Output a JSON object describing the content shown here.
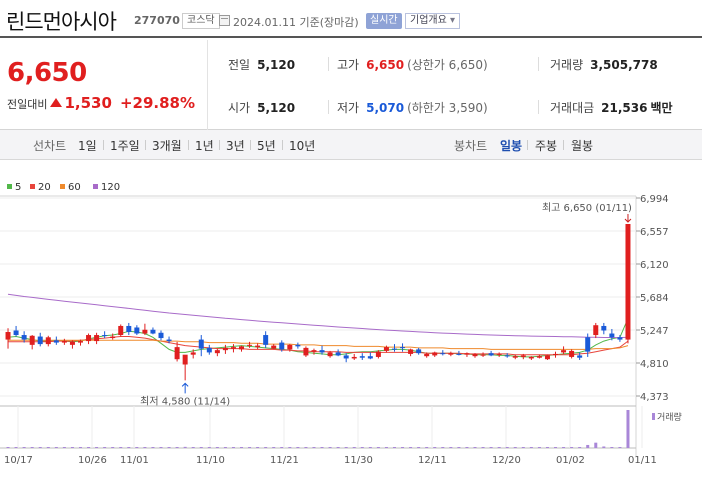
{
  "header": {
    "stock_name": "린드먼아시아",
    "stock_code": "277070",
    "market": "코스닥",
    "date": "2024.01.11 기준(장마감)",
    "realtime_label": "실시간",
    "company_label": "기업개요",
    "company_arrow": "▾"
  },
  "quote": {
    "price": "6,650",
    "change_label": "전일대비",
    "change": "1,530",
    "change_pct": "+29.88%",
    "prev_label": "전일",
    "prev": "5,120",
    "open_label": "시가",
    "open": "5,120",
    "high_label": "고가",
    "high": "6,650",
    "upper_limit": "(상한가 6,650)",
    "low_label": "저가",
    "low": "5,070",
    "lower_limit": "(하한가 3,590)",
    "volume_label": "거래량",
    "volume": "3,505,778",
    "amount_label": "거래대금",
    "amount": "21,536",
    "amount_unit": "백만",
    "colors": {
      "up": "#e01f1f",
      "down": "#1a5ad8"
    }
  },
  "tabs": {
    "line_label": "선차트",
    "line_periods": [
      "1일",
      "1주일",
      "3개월",
      "1년",
      "3년",
      "5년",
      "10년"
    ],
    "candle_label": "봉차트",
    "candle_periods": [
      "일봉",
      "주봉",
      "월봉"
    ],
    "active_candle": "일봉"
  },
  "legend": [
    {
      "label": "5",
      "color": "#52b84a"
    },
    {
      "label": "20",
      "color": "#e8453c"
    },
    {
      "label": "60",
      "color": "#ef8a2c"
    },
    {
      "label": "120",
      "color": "#a86bc9"
    }
  ],
  "chart_data": {
    "type": "candlestick",
    "y_ticks": [
      "6,994",
      "6,557",
      "6,120",
      "5,684",
      "5,247",
      "4,810",
      "4,373"
    ],
    "ylim": [
      4373,
      6994
    ],
    "x_labels": [
      "10/17",
      "10/26",
      "11/01",
      "11/10",
      "11/21",
      "11/30",
      "12/11",
      "12/20",
      "01/02",
      "01/11"
    ],
    "annotation_high": "최고 6,650 (01/11)",
    "annotation_low": "최저 4,580 (11/14)",
    "volume_label": "거래량",
    "candles": [
      [
        5120,
        5270,
        5000,
        5220
      ],
      [
        5240,
        5300,
        5160,
        5180
      ],
      [
        5180,
        5230,
        5080,
        5120
      ],
      [
        5050,
        5180,
        4990,
        5170
      ],
      [
        5160,
        5210,
        5030,
        5060
      ],
      [
        5060,
        5170,
        5030,
        5150
      ],
      [
        5110,
        5160,
        5050,
        5080
      ],
      [
        5080,
        5130,
        5050,
        5100
      ],
      [
        5050,
        5110,
        5000,
        5090
      ],
      [
        5080,
        5120,
        5040,
        5100
      ],
      [
        5100,
        5200,
        5060,
        5180
      ],
      [
        5100,
        5210,
        5060,
        5180
      ],
      [
        5180,
        5230,
        5140,
        5170
      ],
      [
        5140,
        5200,
        5120,
        5160
      ],
      [
        5180,
        5320,
        5160,
        5300
      ],
      [
        5300,
        5340,
        5180,
        5220
      ],
      [
        5280,
        5310,
        5180,
        5200
      ],
      [
        5200,
        5330,
        5180,
        5250
      ],
      [
        5250,
        5280,
        5190,
        5200
      ],
      [
        5210,
        5240,
        5110,
        5140
      ],
      [
        5120,
        5160,
        5070,
        5100
      ],
      [
        4860,
        5090,
        4830,
        5020
      ],
      [
        4790,
        4910,
        4580,
        4920
      ],
      [
        4920,
        4990,
        4870,
        4950
      ],
      [
        5120,
        5180,
        4900,
        5000
      ],
      [
        5010,
        5050,
        4920,
        4950
      ],
      [
        4940,
        5000,
        4900,
        4980
      ],
      [
        4980,
        5050,
        4930,
        5010
      ],
      [
        5000,
        5060,
        4950,
        5020
      ],
      [
        4990,
        5040,
        4960,
        5030
      ],
      [
        5040,
        5090,
        5010,
        5050
      ],
      [
        5020,
        5070,
        4990,
        5040
      ],
      [
        5180,
        5230,
        5010,
        5050
      ],
      [
        5000,
        5060,
        4990,
        5040
      ],
      [
        5080,
        5110,
        4960,
        4990
      ],
      [
        4990,
        5060,
        4960,
        5050
      ],
      [
        5050,
        5080,
        5000,
        5030
      ],
      [
        4910,
        5030,
        4890,
        5010
      ],
      [
        4960,
        5000,
        4920,
        4980
      ],
      [
        4980,
        5040,
        4920,
        4950
      ],
      [
        4900,
        4970,
        4880,
        4950
      ],
      [
        4950,
        4990,
        4900,
        4910
      ],
      [
        4910,
        4940,
        4820,
        4870
      ],
      [
        4870,
        4930,
        4850,
        4890
      ],
      [
        4900,
        4940,
        4850,
        4880
      ],
      [
        4900,
        4950,
        4860,
        4870
      ],
      [
        4890,
        4980,
        4870,
        4960
      ],
      [
        4970,
        5040,
        4950,
        5020
      ],
      [
        5000,
        5060,
        4960,
        4990
      ],
      [
        5020,
        5070,
        4960,
        5010
      ],
      [
        4930,
        5000,
        4900,
        4990
      ],
      [
        4990,
        5010,
        4920,
        4940
      ],
      [
        4900,
        4950,
        4880,
        4930
      ],
      [
        4910,
        4960,
        4890,
        4950
      ],
      [
        4940,
        4980,
        4910,
        4930
      ],
      [
        4920,
        4960,
        4900,
        4940
      ],
      [
        4930,
        4970,
        4910,
        4920
      ],
      [
        4920,
        4950,
        4890,
        4940
      ],
      [
        4900,
        4940,
        4880,
        4930
      ],
      [
        4910,
        4950,
        4890,
        4920
      ],
      [
        4940,
        4970,
        4900,
        4910
      ],
      [
        4920,
        4950,
        4890,
        4930
      ],
      [
        4910,
        4940,
        4880,
        4900
      ],
      [
        4880,
        4920,
        4860,
        4900
      ],
      [
        4890,
        4930,
        4860,
        4910
      ],
      [
        4870,
        4900,
        4850,
        4890
      ],
      [
        4880,
        4920,
        4870,
        4900
      ],
      [
        4860,
        4920,
        4850,
        4910
      ],
      [
        4920,
        4960,
        4880,
        4930
      ],
      [
        4950,
        5030,
        4930,
        4980
      ],
      [
        4890,
        4990,
        4870,
        4970
      ],
      [
        4910,
        4950,
        4850,
        4880
      ],
      [
        5150,
        5200,
        4890,
        4960
      ],
      [
        5180,
        5340,
        5140,
        5310
      ],
      [
        5300,
        5340,
        5190,
        5240
      ],
      [
        5200,
        5260,
        5110,
        5150
      ],
      [
        5150,
        5180,
        5090,
        5120
      ],
      [
        5120,
        6650,
        5070,
        6650
      ]
    ],
    "ma": {
      "5": [
        5150,
        5160,
        5140,
        5120,
        5100,
        5100,
        5110,
        5100,
        5090,
        5100,
        5130,
        5150,
        5170,
        5180,
        5200,
        5230,
        5220,
        5200,
        5150,
        5070,
        4990,
        4950,
        4950,
        4970,
        4990,
        5000,
        5010,
        5020,
        5030,
        5040,
        5030,
        5020,
        5010,
        5000,
        4990,
        4980,
        4960,
        4950,
        4940,
        4930,
        4920,
        4920,
        4930,
        4950,
        4960,
        4960,
        4970,
        4980,
        4990,
        4990,
        4980,
        4960,
        4940,
        4940,
        4940,
        4940,
        4930,
        4930,
        4920,
        4920,
        4920,
        4910,
        4910,
        4900,
        4890,
        4890,
        4900,
        4910,
        4920,
        4930,
        4940,
        4950,
        4980,
        5050,
        5100,
        5130,
        5150,
        5400
      ],
      "20": [
        5090,
        5090,
        5090,
        5090,
        5090,
        5090,
        5100,
        5100,
        5100,
        5110,
        5120,
        5130,
        5140,
        5150,
        5160,
        5160,
        5150,
        5140,
        5120,
        5100,
        5080,
        5060,
        5040,
        5030,
        5020,
        5010,
        5000,
        5000,
        5000,
        5000,
        4990,
        4990,
        4990,
        4990,
        4980,
        4980,
        4970,
        4970,
        4960,
        4960,
        4960,
        4960,
        4950,
        4950,
        4950,
        4950,
        4950,
        4950,
        4950,
        4950,
        4950,
        4950,
        4940,
        4940,
        4940,
        4940,
        4940,
        4930,
        4930,
        4930,
        4930,
        4930,
        4930,
        4920,
        4920,
        4920,
        4920,
        4920,
        4920,
        4920,
        4920,
        4930,
        4940,
        4960,
        4980,
        5000,
        5020,
        5100
      ],
      "60": [
        5110,
        5110,
        5110,
        5110,
        5110,
        5110,
        5110,
        5110,
        5110,
        5110,
        5110,
        5110,
        5110,
        5110,
        5110,
        5110,
        5110,
        5110,
        5110,
        5100,
        5100,
        5100,
        5090,
        5090,
        5090,
        5080,
        5080,
        5080,
        5080,
        5070,
        5070,
        5070,
        5060,
        5060,
        5060,
        5060,
        5050,
        5050,
        5050,
        5040,
        5040,
        5040,
        5040,
        5030,
        5030,
        5030,
        5030,
        5020,
        5020,
        5020,
        5020,
        5010,
        5010,
        5010,
        5010,
        5000,
        5000,
        5000,
        5000,
        5000,
        4990,
        4990,
        4990,
        4990,
        4990,
        4990,
        4990,
        4990,
        4990,
        4990,
        4990,
        4990,
        4990,
        5000,
        5000,
        5000,
        5010,
        5040
      ],
      "120": [
        5720,
        5705,
        5690,
        5678,
        5665,
        5652,
        5640,
        5628,
        5616,
        5604,
        5592,
        5580,
        5568,
        5556,
        5544,
        5532,
        5520,
        5508,
        5496,
        5484,
        5472,
        5462,
        5452,
        5442,
        5432,
        5422,
        5412,
        5402,
        5393,
        5384,
        5375,
        5366,
        5358,
        5350,
        5342,
        5334,
        5326,
        5318,
        5310,
        5302,
        5294,
        5287,
        5280,
        5273,
        5266,
        5259,
        5252,
        5246,
        5240,
        5234,
        5228,
        5222,
        5216,
        5211,
        5206,
        5201,
        5196,
        5192,
        5188,
        5184,
        5180,
        5177,
        5174,
        5171,
        5168,
        5166,
        5164,
        5162,
        5160,
        5158,
        5156,
        5154,
        5152,
        5150,
        5148,
        5147,
        5146,
        5150
      ]
    },
    "volume": [
      2,
      1,
      1,
      1,
      1,
      1,
      1,
      1,
      1,
      1,
      1,
      1,
      1,
      1,
      1,
      1,
      1,
      1,
      1,
      1,
      1,
      2,
      3,
      2,
      1,
      1,
      1,
      1,
      1,
      1,
      1,
      1,
      1,
      1,
      1,
      1,
      1,
      1,
      1,
      1,
      1,
      1,
      1,
      1,
      1,
      1,
      1,
      1,
      1,
      1,
      1,
      1,
      1,
      1,
      1,
      1,
      1,
      1,
      1,
      1,
      1,
      1,
      1,
      1,
      1,
      1,
      1,
      1,
      1,
      1,
      1,
      1,
      8,
      14,
      4,
      2,
      1,
      100
    ]
  }
}
